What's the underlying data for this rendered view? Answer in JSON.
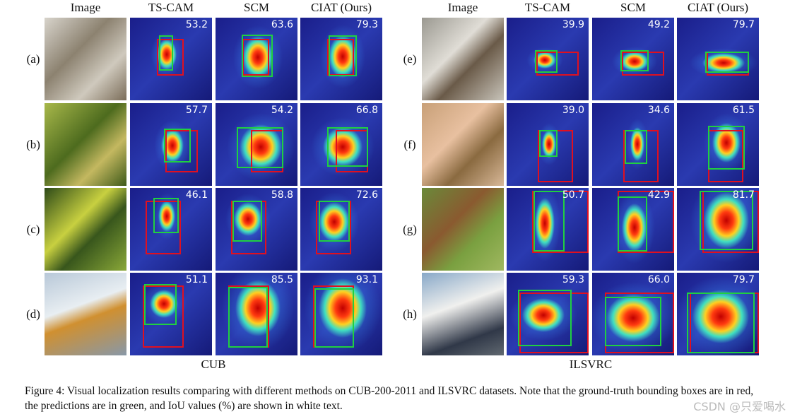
{
  "figure": {
    "groups": [
      {
        "headers": [
          "Image",
          "TS-CAM",
          "SCM",
          "CIAT (Ours)"
        ],
        "name": "CUB",
        "rows": [
          {
            "label": "(a)",
            "iou": [
              "53.2",
              "63.6",
              "79.3"
            ]
          },
          {
            "label": "(b)",
            "iou": [
              "57.7",
              "54.2",
              "66.8"
            ]
          },
          {
            "label": "(c)",
            "iou": [
              "46.1",
              "58.8",
              "72.6"
            ]
          },
          {
            "label": "(d)",
            "iou": [
              "51.1",
              "85.5",
              "93.1"
            ]
          }
        ]
      },
      {
        "headers": [
          "Image",
          "TS-CAM",
          "SCM",
          "CIAT (Ours)"
        ],
        "name": "ILSVRC",
        "rows": [
          {
            "label": "(e)",
            "iou": [
              "39.9",
              "49.2",
              "79.7"
            ]
          },
          {
            "label": "(f)",
            "iou": [
              "39.0",
              "34.6",
              "61.5"
            ]
          },
          {
            "label": "(g)",
            "iou": [
              "50.7",
              "42.9",
              "81.7"
            ]
          },
          {
            "label": "(h)",
            "iou": [
              "59.3",
              "66.0",
              "79.7"
            ]
          }
        ]
      }
    ],
    "caption": "Figure 4: Visual localization results comparing with different methods on CUB-200-2011 and ILSVRC datasets. Note that the ground-truth bounding boxes are in red, the predictions are in green, and IoU values (%) are shown in white text."
  },
  "watermark": "CSDN @只爱喝水"
}
